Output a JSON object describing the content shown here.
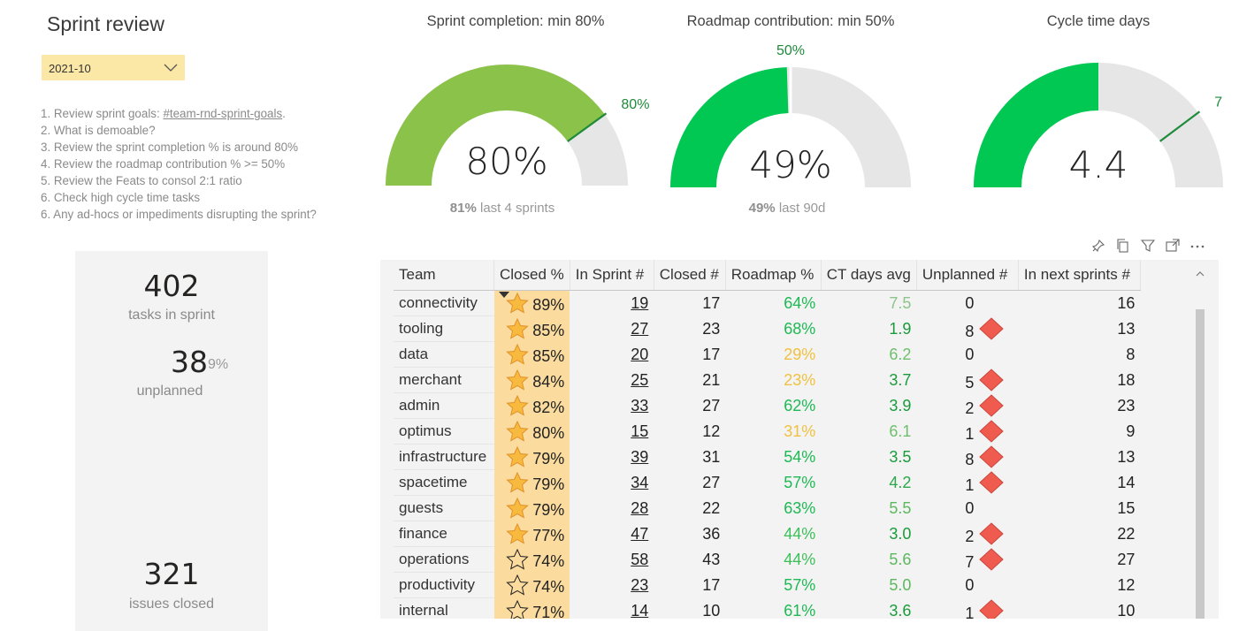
{
  "header": {
    "title": "Sprint review",
    "date_selected": "2021-10"
  },
  "agenda": [
    {
      "prefix": "1. Review sprint goals: ",
      "link": "#team-rnd-sprint-goals",
      "suffix": "."
    },
    {
      "prefix": "2. What is demoable?",
      "link": "",
      "suffix": ""
    },
    {
      "prefix": "3. Review the sprint completion % is around 80%",
      "link": "",
      "suffix": ""
    },
    {
      "prefix": "4. Review the roadmap contribution % >= 50%",
      "link": "",
      "suffix": ""
    },
    {
      "prefix": "5. Review the Feats to consol 2:1 ratio",
      "link": "",
      "suffix": ""
    },
    {
      "prefix": "6. Check high cycle time tasks",
      "link": "",
      "suffix": ""
    },
    {
      "prefix": "6. Any ad-hocs or impediments disrupting the sprint?",
      "link": "",
      "suffix": ""
    }
  ],
  "kpis": {
    "tasks_in_sprint": "402",
    "tasks_in_sprint_label": "tasks in sprint",
    "unplanned": "38",
    "unplanned_pct": "9%",
    "unplanned_label": "unplanned",
    "issues_closed": "321",
    "issues_closed_label": "issues closed"
  },
  "gauges": [
    {
      "title": "Sprint completion: min 80%",
      "value_label": "80%",
      "value": 80,
      "max": 100,
      "target": 80,
      "target_label": "80%",
      "foot_bold": "81%",
      "foot_text": "last 4 sprints",
      "color": "#8bc34a"
    },
    {
      "title": "Roadmap contribution: min 50%",
      "value_label": "49%",
      "value": 49,
      "max": 100,
      "target": 50,
      "target_label": "50%",
      "foot_bold": "49%",
      "foot_text": "last 90d",
      "color": "#00c853"
    },
    {
      "title": "Cycle time days",
      "value_label": "4.4",
      "value": 4.4,
      "max": 8.8,
      "target": 7,
      "target_label": "7",
      "foot_bold": "",
      "foot_text": "",
      "color": "#00c853"
    }
  ],
  "colors": {
    "target_mark": "#1e8a3a",
    "gauge_bg": "#e6e6e6",
    "green_dark": "#1a9b3c",
    "green": "#3cbf5a",
    "green_light": "#6dbf6d",
    "yellow": "#f0c040",
    "closed_highlight": "#fbdc9e",
    "diamond": "#ef5b4f"
  },
  "table": {
    "columns": [
      "Team",
      "Closed %",
      "In Sprint #",
      "Closed #",
      "Roadmap %",
      "CT days avg",
      "Unplanned #",
      "In next sprints #"
    ],
    "rows": [
      {
        "team": "connectivity",
        "closed_pct": "89%",
        "star": "filled",
        "in_sprint": "19",
        "closed": "17",
        "roadmap": "64%",
        "roadmap_color": "#1db954",
        "ct": "7.5",
        "ct_color": "#8cc48c",
        "unplanned": "0",
        "flag": false,
        "next": "16"
      },
      {
        "team": "tooling",
        "closed_pct": "85%",
        "star": "filled",
        "in_sprint": "27",
        "closed": "23",
        "roadmap": "68%",
        "roadmap_color": "#1db954",
        "ct": "1.9",
        "ct_color": "#1a9b3c",
        "unplanned": "8",
        "flag": true,
        "next": "13"
      },
      {
        "team": "data",
        "closed_pct": "85%",
        "star": "filled",
        "in_sprint": "20",
        "closed": "17",
        "roadmap": "29%",
        "roadmap_color": "#f0c040",
        "ct": "6.2",
        "ct_color": "#6dbf6d",
        "unplanned": "0",
        "flag": false,
        "next": "8"
      },
      {
        "team": "merchant",
        "closed_pct": "84%",
        "star": "filled",
        "in_sprint": "25",
        "closed": "21",
        "roadmap": "23%",
        "roadmap_color": "#f0c040",
        "ct": "3.7",
        "ct_color": "#1a9b3c",
        "unplanned": "5",
        "flag": true,
        "next": "18"
      },
      {
        "team": "admin",
        "closed_pct": "82%",
        "star": "filled",
        "in_sprint": "33",
        "closed": "27",
        "roadmap": "62%",
        "roadmap_color": "#1db954",
        "ct": "3.9",
        "ct_color": "#1a9b3c",
        "unplanned": "2",
        "flag": true,
        "next": "23"
      },
      {
        "team": "optimus",
        "closed_pct": "80%",
        "star": "filled",
        "in_sprint": "15",
        "closed": "12",
        "roadmap": "31%",
        "roadmap_color": "#f0c040",
        "ct": "6.1",
        "ct_color": "#6dbf6d",
        "unplanned": "1",
        "flag": true,
        "next": "9"
      },
      {
        "team": "infrastructure",
        "closed_pct": "79%",
        "star": "filled",
        "in_sprint": "39",
        "closed": "31",
        "roadmap": "54%",
        "roadmap_color": "#1db954",
        "ct": "3.5",
        "ct_color": "#1a9b3c",
        "unplanned": "8",
        "flag": true,
        "next": "13"
      },
      {
        "team": "spacetime",
        "closed_pct": "79%",
        "star": "filled",
        "in_sprint": "34",
        "closed": "27",
        "roadmap": "57%",
        "roadmap_color": "#1db954",
        "ct": "4.2",
        "ct_color": "#2aa84a",
        "unplanned": "1",
        "flag": true,
        "next": "14"
      },
      {
        "team": "guests",
        "closed_pct": "79%",
        "star": "filled",
        "in_sprint": "28",
        "closed": "22",
        "roadmap": "63%",
        "roadmap_color": "#1db954",
        "ct": "5.5",
        "ct_color": "#5cb85c",
        "unplanned": "0",
        "flag": false,
        "next": "15"
      },
      {
        "team": "finance",
        "closed_pct": "77%",
        "star": "filled",
        "in_sprint": "47",
        "closed": "36",
        "roadmap": "44%",
        "roadmap_color": "#3cbf5a",
        "ct": "3.0",
        "ct_color": "#1a9b3c",
        "unplanned": "2",
        "flag": true,
        "next": "22"
      },
      {
        "team": "operations",
        "closed_pct": "74%",
        "star": "outline",
        "in_sprint": "58",
        "closed": "43",
        "roadmap": "44%",
        "roadmap_color": "#3cbf5a",
        "ct": "5.6",
        "ct_color": "#5cb85c",
        "unplanned": "7",
        "flag": true,
        "next": "27"
      },
      {
        "team": "productivity",
        "closed_pct": "74%",
        "star": "outline",
        "in_sprint": "23",
        "closed": "17",
        "roadmap": "57%",
        "roadmap_color": "#1db954",
        "ct": "5.0",
        "ct_color": "#5cb85c",
        "unplanned": "0",
        "flag": false,
        "next": "12"
      },
      {
        "team": "internal",
        "closed_pct": "71%",
        "star": "outline",
        "in_sprint": "14",
        "closed": "10",
        "roadmap": "61%",
        "roadmap_color": "#1db954",
        "ct": "3.6",
        "ct_color": "#1a9b3c",
        "unplanned": "1",
        "flag": true,
        "next": "10"
      }
    ]
  },
  "icons": {
    "visual_header": [
      "pin-icon",
      "copy-icon",
      "filter-icon",
      "focus-mode-icon",
      "more-options-icon"
    ]
  }
}
